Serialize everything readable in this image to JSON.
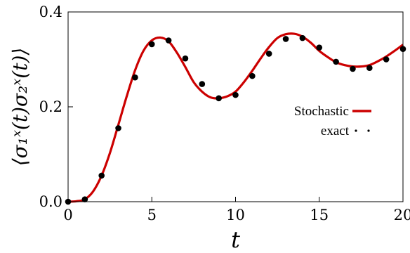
{
  "chart_data": {
    "type": "line",
    "title": "",
    "xlabel": "t",
    "ylabel": "⟨σ₁ˣ(t)σ₂ˣ(t)⟩",
    "xlim": [
      0,
      20
    ],
    "ylim": [
      0,
      0.4
    ],
    "xticks": [
      "0",
      "5",
      "10",
      "15",
      "20"
    ],
    "yticks": [
      "0.0",
      "0.2",
      "0.4"
    ],
    "grid": false,
    "legend_position": "center-right",
    "series": [
      {
        "name": "Stochastic",
        "style": "line",
        "color": "#cc0000",
        "x": [
          0,
          0.5,
          1,
          1.5,
          2,
          2.5,
          3,
          3.5,
          4,
          4.5,
          5,
          5.5,
          6,
          6.5,
          7,
          7.5,
          8,
          8.5,
          9,
          9.5,
          10,
          10.5,
          11,
          11.5,
          12,
          12.5,
          13,
          13.5,
          14,
          14.5,
          15,
          15.5,
          16,
          16.5,
          17,
          17.5,
          18,
          18.5,
          19,
          19.5,
          20
        ],
        "y": [
          0.0,
          0.001,
          0.005,
          0.022,
          0.055,
          0.103,
          0.162,
          0.222,
          0.277,
          0.318,
          0.34,
          0.346,
          0.338,
          0.314,
          0.284,
          0.252,
          0.232,
          0.22,
          0.218,
          0.222,
          0.232,
          0.252,
          0.276,
          0.302,
          0.326,
          0.345,
          0.353,
          0.354,
          0.348,
          0.335,
          0.318,
          0.305,
          0.294,
          0.288,
          0.285,
          0.285,
          0.288,
          0.296,
          0.306,
          0.318,
          0.331
        ]
      },
      {
        "name": "exact",
        "style": "markers",
        "color": "#000000",
        "x": [
          0,
          1,
          2,
          3,
          4,
          5,
          6,
          7,
          8,
          9,
          10,
          11,
          12,
          13,
          14,
          15,
          16,
          17,
          18,
          19,
          20
        ],
        "y": [
          0.0,
          0.005,
          0.055,
          0.155,
          0.262,
          0.332,
          0.34,
          0.302,
          0.248,
          0.218,
          0.225,
          0.265,
          0.312,
          0.343,
          0.345,
          0.325,
          0.295,
          0.28,
          0.282,
          0.3,
          0.322
        ]
      }
    ]
  }
}
